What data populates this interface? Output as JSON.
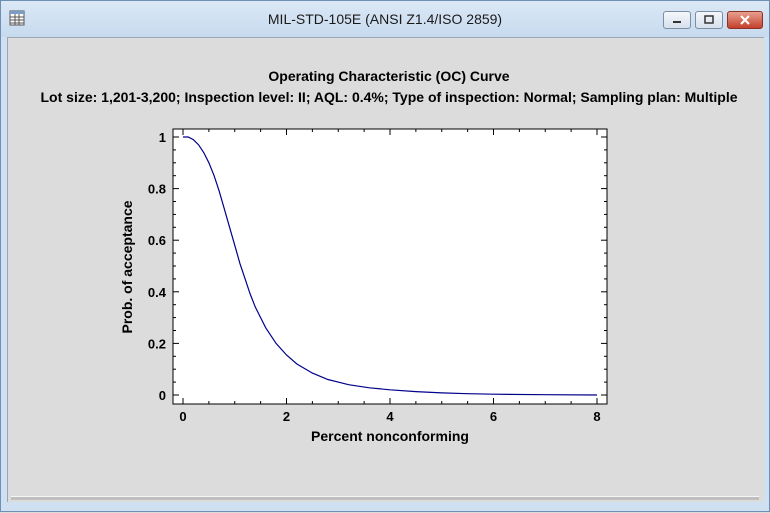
{
  "window": {
    "title": "MIL-STD-105E (ANSI Z1.4/ISO 2859)",
    "icon": "table-icon",
    "controls": [
      "minimize",
      "maximize",
      "close"
    ]
  },
  "chart_data": {
    "type": "line",
    "title": "Operating Characteristic (OC) Curve",
    "subtitle": "Lot size: 1,201-3,200; Inspection level: II; AQL: 0.4%; Type of inspection: Normal; Sampling plan: Multiple",
    "xlabel": "Percent nonconforming",
    "ylabel": "Prob. of acceptance",
    "xlim": [
      0,
      8
    ],
    "ylim": [
      0,
      1
    ],
    "xticks": [
      0,
      2,
      4,
      6,
      8
    ],
    "yticks": [
      0,
      0.2,
      0.4,
      0.6,
      0.8,
      1
    ],
    "ytick_labels": [
      "0",
      "0.2",
      "0.4",
      "0.6",
      "0.8",
      "1"
    ],
    "grid": false,
    "line_color": "#00008b",
    "x": [
      0,
      0.1,
      0.2,
      0.3,
      0.4,
      0.5,
      0.6,
      0.7,
      0.8,
      0.9,
      1.0,
      1.1,
      1.2,
      1.3,
      1.4,
      1.5,
      1.6,
      1.8,
      2.0,
      2.2,
      2.5,
      2.8,
      3.2,
      3.6,
      4.0,
      4.5,
      5.0,
      5.5,
      6.0,
      7.0,
      8.0
    ],
    "y": [
      1.0,
      1.0,
      0.99,
      0.97,
      0.94,
      0.9,
      0.85,
      0.79,
      0.72,
      0.65,
      0.58,
      0.51,
      0.45,
      0.39,
      0.34,
      0.3,
      0.26,
      0.2,
      0.155,
      0.12,
      0.085,
      0.06,
      0.04,
      0.028,
      0.02,
      0.013,
      0.008,
      0.005,
      0.003,
      0.001,
      0.0
    ]
  }
}
